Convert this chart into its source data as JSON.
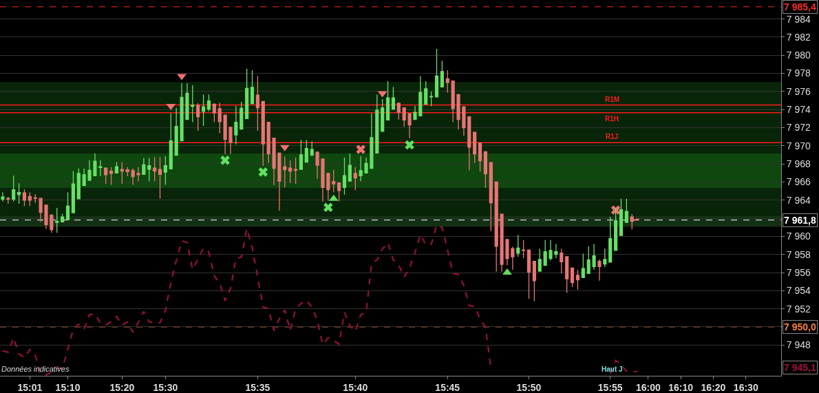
{
  "chart_data": {
    "type": "candlestick",
    "categories": [
      null,
      null,
      null,
      null,
      null,
      "15:01",
      null,
      null,
      null,
      null,
      null,
      null,
      "15:10",
      null,
      null,
      null,
      null,
      null,
      null,
      null,
      null,
      null,
      "15:20",
      null,
      null,
      null,
      null,
      null,
      null,
      null,
      "15:30",
      null,
      null,
      null,
      null,
      null,
      null,
      null,
      null,
      null,
      null,
      null,
      null,
      null,
      null,
      null,
      null,
      "15:35",
      null,
      null,
      null,
      null,
      null,
      null,
      null,
      null,
      null,
      null,
      null,
      null,
      null,
      null,
      null,
      null,
      null,
      "15:40",
      null,
      null,
      null,
      null,
      null,
      null,
      null,
      null,
      null,
      null,
      null,
      null,
      null,
      null,
      null,
      null,
      "15:45",
      null,
      null,
      null,
      null,
      null,
      null,
      null,
      null,
      null,
      null,
      null,
      null,
      null,
      null,
      "15:50",
      null,
      null,
      null,
      null,
      null,
      null,
      null,
      null,
      null,
      null,
      null,
      null,
      null,
      null,
      "15:55",
      null,
      null,
      null,
      null,
      null,
      null,
      "16:00",
      null,
      null,
      null,
      null,
      null,
      "16:10",
      null,
      null,
      null,
      null,
      null,
      "16:20",
      null,
      null,
      null,
      null,
      null,
      "16:30",
      null,
      null,
      null,
      null,
      null,
      null
    ],
    "ohlc": [
      [
        7964.1,
        7964.85,
        7963.85,
        7964.35
      ],
      [
        7964.2,
        7964.35,
        7963.6,
        7964.1
      ],
      [
        7964.1,
        7966.7,
        7963.85,
        7965.15
      ],
      [
        7964.6,
        7965.85,
        7963.6,
        7964.85
      ],
      [
        7964.8,
        7965.2,
        7963.35,
        7964.0
      ],
      [
        7964.4,
        7964.85,
        7963.35,
        7964.0
      ],
      [
        7964.25,
        7964.65,
        7963.7,
        7964.2
      ],
      [
        7964.2,
        7964.2,
        7961.6,
        7962.65
      ],
      [
        7963.45,
        7963.45,
        7960.8,
        7961.3
      ],
      [
        7962.35,
        7962.4,
        7960.4,
        7960.75
      ],
      [
        7961.55,
        7963.15,
        7960.4,
        7961.65
      ],
      [
        7961.6,
        7962.5,
        7961.6,
        7962.15
      ],
      [
        7961.85,
        7964.85,
        7961.85,
        7963.35
      ],
      [
        7962.6,
        7967.2,
        7962.6,
        7965.8
      ],
      [
        7964.15,
        7967.5,
        7964.15,
        7966.95
      ],
      [
        7965.6,
        7967.5,
        7965.6,
        7966.8
      ],
      [
        7966.2,
        7968.4,
        7966.1,
        7967.3
      ],
      [
        7966.7,
        7969.15,
        7966.7,
        7968.3
      ],
      [
        7967.6,
        7968.4,
        7966.65,
        7967.7
      ],
      [
        7967.55,
        7967.55,
        7965.8,
        7966.8
      ],
      [
        7967.2,
        7967.65,
        7965.7,
        7966.95
      ],
      [
        7967.0,
        7968.2,
        7967.0,
        7967.7
      ],
      [
        7967.4,
        7968.2,
        7965.8,
        7967.2
      ],
      [
        7967.35,
        7967.65,
        7966.65,
        7967.15
      ],
      [
        7967.25,
        7967.5,
        7965.7,
        7966.6
      ],
      [
        7966.95,
        7967.65,
        7966.1,
        7966.8
      ],
      [
        7966.85,
        7968.65,
        7966.85,
        7967.9
      ],
      [
        7967.4,
        7968.65,
        7966.1,
        7967.8
      ],
      [
        7967.55,
        7968.75,
        7966.1,
        7967.2
      ],
      [
        7967.4,
        7968.75,
        7964.15,
        7966.85
      ],
      [
        7967.1,
        7968.85,
        7965.7,
        7967.8
      ],
      [
        7967.45,
        7973.6,
        7967.45,
        7970.55
      ],
      [
        7968.95,
        7974.2,
        7968.95,
        7972.15
      ],
      [
        7970.55,
        7976.9,
        7970.55,
        7975.35
      ],
      [
        7972.9,
        7976.9,
        7972.9,
        7975.8
      ],
      [
        7974.35,
        7976.7,
        7972.6,
        7974.5
      ],
      [
        7974.5,
        7974.7,
        7971.65,
        7973.2
      ],
      [
        7973.8,
        7975.65,
        7972.2,
        7974.3
      ],
      [
        7974.05,
        7975.65,
        7973.8,
        7974.95
      ],
      [
        7974.6,
        7974.7,
        7972.6,
        7973.65
      ],
      [
        7974.1,
        7974.75,
        7971.4,
        7972.65
      ],
      [
        7973.4,
        7973.4,
        7969.1,
        7970.7
      ],
      [
        7972.05,
        7972.05,
        7969.1,
        7970.35
      ],
      [
        7971.2,
        7974.4,
        7970.15,
        7972.6
      ],
      [
        7971.85,
        7974.85,
        7971.85,
        7974.15
      ],
      [
        7973.0,
        7978.5,
        7973.0,
        7976.35
      ],
      [
        7974.65,
        7978.35,
        7974.65,
        7976.45
      ],
      [
        7975.6,
        7977.7,
        7971.65,
        7974.2
      ],
      [
        7974.9,
        7974.9,
        7967.8,
        7970.2
      ],
      [
        7972.6,
        7972.6,
        7968.1,
        7969.1
      ],
      [
        7970.85,
        7970.85,
        7965.65,
        7967.5
      ],
      [
        7969.2,
        7969.2,
        7962.85,
        7966.1
      ],
      [
        7967.7,
        7968.8,
        7965.4,
        7967.35
      ],
      [
        7967.55,
        7968.4,
        7965.9,
        7967.2
      ],
      [
        7967.4,
        7968.7,
        7965.8,
        7967.3
      ],
      [
        7967.4,
        7970.65,
        7967.4,
        7969.0
      ],
      [
        7968.2,
        7970.65,
        7968.2,
        7969.7
      ],
      [
        7969.0,
        7970.5,
        7968.85,
        7969.6
      ],
      [
        7969.3,
        7969.4,
        7966.35,
        7967.85
      ],
      [
        7968.55,
        7968.55,
        7963.85,
        7965.4
      ],
      [
        7966.95,
        7966.95,
        7963.95,
        7965.15
      ],
      [
        7966.05,
        7967.35,
        7964.85,
        7965.8
      ],
      [
        7965.9,
        7965.9,
        7963.85,
        7965.05
      ],
      [
        7965.4,
        7968.7,
        7964.6,
        7966.7
      ],
      [
        7966.1,
        7969.15,
        7966.1,
        7967.85
      ],
      [
        7966.95,
        7967.65,
        7965.1,
        7966.45
      ],
      [
        7966.7,
        7968.85,
        7966.1,
        7967.25
      ],
      [
        7967.0,
        7968.7,
        7967.0,
        7968.05
      ],
      [
        7967.5,
        7973.6,
        7967.5,
        7970.9
      ],
      [
        7969.2,
        7975.65,
        7969.2,
        7973.95
      ],
      [
        7971.6,
        7975.15,
        7971.6,
        7974.2
      ],
      [
        7972.85,
        7977.15,
        7972.85,
        7975.3
      ],
      [
        7974.05,
        7976.5,
        7974.05,
        7975.3
      ],
      [
        7974.7,
        7974.7,
        7972.9,
        7973.7
      ],
      [
        7974.2,
        7974.2,
        7972.1,
        7972.85
      ],
      [
        7973.55,
        7973.55,
        7970.85,
        7972.3
      ],
      [
        7972.9,
        7974.4,
        7972.85,
        7973.7
      ],
      [
        7973.3,
        7977.7,
        7973.3,
        7975.9
      ],
      [
        7974.6,
        7977.15,
        7974.6,
        7976.3
      ],
      [
        7975.4,
        7976.0,
        7974.35,
        7975.45
      ],
      [
        7975.4,
        7980.7,
        7975.4,
        7977.7
      ],
      [
        7976.5,
        7979.4,
        7976.5,
        7978.2
      ],
      [
        7977.4,
        7978.35,
        7975.85,
        7977.0
      ],
      [
        7977.15,
        7977.15,
        7972.6,
        7974.1
      ],
      [
        7975.65,
        7975.65,
        7971.8,
        7972.9
      ],
      [
        7974.3,
        7974.3,
        7971.1,
        7972.0
      ],
      [
        7973.2,
        7973.2,
        7967.3,
        7969.85
      ],
      [
        7971.5,
        7971.5,
        7968.1,
        7969.1
      ],
      [
        7970.3,
        7970.3,
        7967.15,
        7968.35
      ],
      [
        7969.35,
        7969.35,
        7965.35,
        7966.9
      ],
      [
        7968.15,
        7968.15,
        7960.6,
        7963.7
      ],
      [
        7966.0,
        7966.0,
        7956.1,
        7958.9
      ],
      [
        7962.45,
        7962.45,
        7956.1,
        7956.9
      ],
      [
        7959.65,
        7959.65,
        7956.8,
        7957.55
      ],
      [
        7958.65,
        7958.85,
        7956.3,
        7957.75
      ],
      [
        7958.15,
        7960.15,
        7957.75,
        7958.7
      ],
      [
        7958.5,
        7959.6,
        7957.6,
        7958.45
      ],
      [
        7958.5,
        7958.5,
        7953.1,
        7956.05
      ],
      [
        7957.25,
        7957.25,
        7952.85,
        7955.1
      ],
      [
        7956.15,
        7958.65,
        7956.15,
        7957.45
      ],
      [
        7956.8,
        7959.6,
        7956.8,
        7958.3
      ],
      [
        7957.55,
        7959.6,
        7957.35,
        7958.45
      ],
      [
        7958.0,
        7959.15,
        7957.6,
        7958.3
      ],
      [
        7958.15,
        7958.65,
        7955.9,
        7957.2
      ],
      [
        7957.75,
        7957.75,
        7953.75,
        7955.3
      ],
      [
        7956.5,
        7956.5,
        7954.4,
        7954.9
      ],
      [
        7955.7,
        7956.3,
        7954.1,
        7955.2
      ],
      [
        7955.45,
        7958.1,
        7955.45,
        7956.45
      ],
      [
        7955.9,
        7958.9,
        7955.85,
        7957.4
      ],
      [
        7956.65,
        7959.15,
        7956.3,
        7957.85
      ],
      [
        7957.25,
        7957.45,
        7955.1,
        7956.65
      ],
      [
        7956.95,
        7958.65,
        7956.6,
        7957.45
      ],
      [
        7957.15,
        7962.15,
        7957.15,
        7959.75
      ],
      [
        7958.45,
        7963.15,
        7958.45,
        7961.75
      ],
      [
        7960.1,
        7964.15,
        7960.1,
        7962.95
      ],
      [
        7961.55,
        7964.15,
        7961.55,
        7962.75
      ],
      [
        7962.15,
        7962.45,
        7960.75,
        7961.65
      ],
      [
        7961.9,
        7961.95,
        7961.7,
        7961.8
      ],
      null,
      null,
      null,
      null,
      null,
      null,
      null,
      null,
      null,
      null,
      null,
      null,
      null,
      null,
      null,
      null,
      null,
      null,
      null,
      null,
      null,
      null,
      null,
      null,
      null,
      null
    ],
    "series": [
      {
        "type": "line",
        "color": "#a0103c",
        "line_style": "dashed",
        "values": [
          7947.35,
          7947.2,
          7948.8,
          7947.0,
          7946.6,
          7947.5,
          7946.85,
          7944.8,
          7944.7,
          7945.0,
          7945.45,
          7945.45,
          7947.5,
          7949.75,
          7950.3,
          7949.75,
          7951.35,
          7951.45,
          7950.45,
          7950.2,
          7950.6,
          7951.15,
          7950.2,
          7950.55,
          7949.4,
          7950.5,
          7951.7,
          7950.55,
          7950.5,
          7950.45,
          7951.85,
          7954.95,
          7957.3,
          7959.5,
          7959.3,
          7956.35,
          7957.5,
          7958.7,
          7958.25,
          7955.65,
          7954.8,
          7952.9,
          7954.25,
          7957.55,
          7957.7,
          7960.85,
          7958.75,
          7955.5,
          7952.2,
          7952.0,
          7949.6,
          7950.9,
          7951.85,
          7949.6,
          7952.0,
          7952.6,
          7952.95,
          7952.2,
          7950.7,
          7948.05,
          7948.8,
          7948.5,
          7948.1,
          7951.6,
          7950.1,
          7949.5,
          7951.35,
          7951.6,
          7957.0,
          7957.4,
          7958.6,
          7959.3,
          7957.4,
          7956.85,
          7955.5,
          7956.5,
          7958.2,
          7960.2,
          7959.1,
          7959.1,
          7961.25,
          7961.0,
          7958.5,
          7955.9,
          7955.8,
          7954.6,
          7952.35,
          7952.25,
          7950.9,
          7949.95,
          7945.4,
          null,
          null,
          null,
          null,
          null,
          null,
          null,
          null,
          null,
          null,
          null,
          null,
          null,
          null,
          null,
          null,
          null,
          null,
          null,
          null,
          null,
          7944.8,
          7946.3,
          7945.8,
          7945.1,
          7945.0,
          7945.1,
          null,
          null,
          null,
          null,
          null,
          null,
          null,
          null,
          null,
          null,
          null,
          null,
          null,
          null,
          null,
          null,
          null,
          null,
          null,
          null,
          null,
          null,
          null,
          null,
          null,
          null
        ]
      },
      {
        "type": "scatter",
        "color": "#f07070",
        "marker": "triangle",
        "values": [
          null,
          null,
          null,
          null,
          null,
          null,
          null,
          null,
          null,
          null,
          null,
          null,
          null,
          null,
          null,
          null,
          null,
          null,
          null,
          null,
          null,
          null,
          null,
          null,
          null,
          null,
          null,
          null,
          null,
          null,
          null,
          7974.4,
          null,
          7977.7,
          null,
          null,
          null,
          null,
          null,
          null,
          null,
          null,
          null,
          null,
          null,
          null,
          null,
          null,
          null,
          null,
          null,
          null,
          7969.85,
          null,
          null,
          null,
          null,
          null,
          null,
          null,
          null,
          null,
          null,
          null,
          null,
          null,
          null,
          null,
          null,
          null,
          7975.8,
          null,
          null,
          null,
          null,
          null,
          null,
          null,
          null,
          null,
          null,
          null,
          null,
          null,
          null,
          null,
          null,
          null,
          null,
          null,
          null,
          null,
          null,
          null,
          null,
          null,
          null,
          null,
          null,
          null,
          null,
          null,
          null,
          null,
          null,
          null,
          null,
          null,
          null,
          null,
          null,
          null,
          null,
          null,
          null,
          null,
          null,
          null,
          null,
          null,
          null,
          null,
          null,
          null,
          null,
          null,
          null,
          null,
          null,
          null,
          null,
          null,
          null,
          null,
          null,
          null,
          null,
          null,
          null,
          null,
          null,
          null,
          null,
          null
        ]
      },
      {
        "type": "scatter",
        "color": "#60e060",
        "marker": "triangle",
        "values": [
          null,
          null,
          null,
          null,
          null,
          null,
          null,
          null,
          null,
          null,
          null,
          null,
          null,
          null,
          null,
          null,
          null,
          null,
          null,
          null,
          null,
          null,
          null,
          null,
          null,
          null,
          null,
          null,
          null,
          null,
          null,
          null,
          null,
          null,
          null,
          null,
          null,
          null,
          null,
          null,
          null,
          null,
          null,
          null,
          null,
          null,
          null,
          null,
          null,
          null,
          null,
          null,
          null,
          null,
          null,
          null,
          null,
          null,
          null,
          null,
          null,
          7964.15,
          null,
          null,
          null,
          null,
          null,
          null,
          null,
          null,
          null,
          null,
          null,
          null,
          null,
          null,
          null,
          null,
          null,
          null,
          null,
          null,
          null,
          null,
          null,
          null,
          null,
          null,
          null,
          null,
          null,
          null,
          null,
          7956.0,
          null,
          null,
          null,
          null,
          null,
          null,
          null,
          null,
          null,
          null,
          null,
          null,
          null,
          null,
          null,
          null,
          null,
          null,
          null,
          null,
          null,
          null,
          null,
          null,
          null,
          null,
          null,
          null,
          null,
          null,
          null,
          null,
          null,
          null,
          null,
          null,
          null,
          null,
          null,
          null,
          null,
          null,
          null,
          null,
          null,
          null,
          null,
          null,
          null,
          null
        ]
      },
      {
        "type": "scatter",
        "color": "#60e060",
        "marker": "cross",
        "values": [
          null,
          null,
          null,
          null,
          null,
          null,
          null,
          null,
          null,
          null,
          null,
          null,
          null,
          null,
          null,
          null,
          null,
          null,
          null,
          null,
          null,
          null,
          null,
          null,
          null,
          null,
          null,
          null,
          null,
          null,
          null,
          null,
          null,
          null,
          null,
          null,
          null,
          null,
          null,
          null,
          null,
          7968.4,
          null,
          null,
          null,
          null,
          null,
          null,
          7967.1,
          null,
          null,
          null,
          null,
          null,
          null,
          null,
          null,
          null,
          null,
          null,
          7963.2,
          null,
          null,
          null,
          null,
          null,
          null,
          null,
          null,
          null,
          null,
          null,
          null,
          null,
          null,
          7970.1,
          null,
          null,
          null,
          null,
          null,
          null,
          null,
          null,
          null,
          null,
          null,
          null,
          null,
          null,
          null,
          null,
          null,
          null,
          null,
          null,
          null,
          null,
          null,
          null,
          null,
          null,
          null,
          null,
          null,
          null,
          null,
          null,
          null,
          null,
          null,
          null,
          null,
          null,
          null,
          null,
          null,
          null,
          null,
          null,
          null,
          null,
          null,
          null,
          null,
          null,
          null,
          null,
          null,
          null,
          null,
          null,
          null,
          null,
          null,
          null,
          null,
          null,
          null,
          null,
          null,
          null,
          null,
          null
        ]
      },
      {
        "type": "scatter",
        "color": "#f07070",
        "marker": "cross",
        "values": [
          null,
          null,
          null,
          null,
          null,
          null,
          null,
          null,
          null,
          null,
          null,
          null,
          null,
          null,
          null,
          null,
          null,
          null,
          null,
          null,
          null,
          null,
          null,
          null,
          null,
          null,
          null,
          null,
          null,
          null,
          null,
          null,
          null,
          null,
          null,
          null,
          null,
          null,
          null,
          null,
          null,
          null,
          null,
          null,
          null,
          null,
          null,
          null,
          null,
          null,
          null,
          null,
          null,
          null,
          null,
          null,
          null,
          null,
          null,
          null,
          null,
          null,
          null,
          null,
          null,
          null,
          7969.6,
          null,
          null,
          null,
          null,
          null,
          null,
          null,
          null,
          null,
          null,
          null,
          null,
          null,
          null,
          null,
          null,
          null,
          null,
          null,
          null,
          null,
          null,
          null,
          null,
          null,
          null,
          null,
          null,
          null,
          null,
          null,
          null,
          null,
          null,
          null,
          null,
          null,
          null,
          null,
          null,
          null,
          null,
          null,
          null,
          null,
          null,
          7962.9,
          null,
          null,
          null,
          null,
          null,
          null,
          null,
          null,
          null,
          null,
          null,
          null,
          null,
          null,
          null,
          null,
          null,
          null,
          null,
          null,
          null,
          null,
          null,
          null,
          null,
          null,
          null,
          null,
          null,
          null
        ]
      }
    ],
    "ylim": [
      7944.6,
      7986.1
    ],
    "yticks": [
      {
        "value": 7948,
        "label": "7 948"
      },
      {
        "value": 7950,
        "label": null
      },
      {
        "value": 7952,
        "label": "7 952"
      },
      {
        "value": 7954,
        "label": "7 954"
      },
      {
        "value": 7956,
        "label": "7 956"
      },
      {
        "value": 7958,
        "label": "7 958"
      },
      {
        "value": 7960,
        "label": "7 960"
      },
      {
        "value": 7962,
        "label": null
      },
      {
        "value": 7964,
        "label": "7 964"
      },
      {
        "value": 7966,
        "label": "7 966"
      },
      {
        "value": 7968,
        "label": "7 968"
      },
      {
        "value": 7970,
        "label": "7 970"
      },
      {
        "value": 7972,
        "label": "7 972"
      },
      {
        "value": 7974,
        "label": "7 974"
      },
      {
        "value": 7976,
        "label": "7 976"
      },
      {
        "value": 7978,
        "label": "7 978"
      },
      {
        "value": 7980,
        "label": "7 980"
      },
      {
        "value": 7982,
        "label": "7 982"
      },
      {
        "value": 7984,
        "label": "7 984"
      }
    ],
    "grid": "y",
    "bands": [
      {
        "axis": "y",
        "from": 7962.25,
        "to": 7977.0,
        "color": "#1c6b1c"
      },
      {
        "axis": "y",
        "from": 7965.4,
        "to": 7969.1,
        "color": "#1c8a1c"
      },
      {
        "axis": "y",
        "from": 7961.1,
        "to": 7962.2,
        "color": "#3a8a3a"
      }
    ],
    "ref_lines": [
      {
        "axis": "y",
        "value": 7974.5,
        "label": "R1M",
        "color": "#ff1a1a",
        "line_style": "solid"
      },
      {
        "axis": "y",
        "value": 7973.65,
        "label": "R1H",
        "color": "#ff1a1a",
        "line_style": "solid"
      },
      {
        "axis": "y",
        "value": 7970.35,
        "label": "R1J",
        "color": "#ff1a1a",
        "line_style": "solid"
      },
      {
        "axis": "y",
        "value": 7985.35,
        "label": "7 985,4",
        "color": "#ff2a2a",
        "line_style": "dashed"
      },
      {
        "axis": "y",
        "value": 7961.8,
        "label": "7 961,8",
        "color": "#ffffff",
        "line_style": "dashed"
      },
      {
        "axis": "y",
        "value": 7950.0,
        "label": "7 950,0",
        "color": "#ff7f3f",
        "line_style": "dashed"
      }
    ],
    "annotations": [
      "Données indicatives",
      "Haut J",
      "7 945,1"
    ]
  }
}
